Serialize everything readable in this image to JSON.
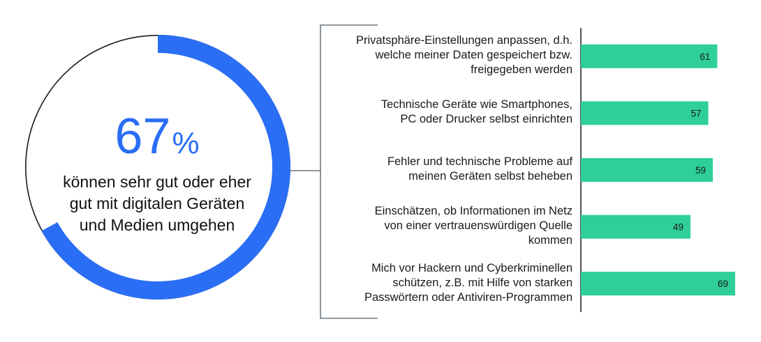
{
  "headline": {
    "value": "67",
    "unit": "%",
    "caption_lines": [
      "können sehr gut oder eher",
      "gut mit digitalen Geräten",
      "und Medien umgehen"
    ]
  },
  "colors": {
    "donut_fill": "#2a6ef5",
    "donut_track": "#1a1a1a",
    "bars": "#2ecf9a",
    "bracket": "#4a5a66"
  },
  "chart_data": [
    {
      "type": "pie",
      "values": [
        67,
        33
      ],
      "labels": [
        "67%",
        ""
      ]
    },
    {
      "type": "bar",
      "orientation": "horizontal",
      "categories": [
        [
          "Privatsphäre-Einstellungen anpassen, d.h.",
          "welche meiner Daten gespeichert bzw.",
          "freigegeben werden"
        ],
        [
          "Technische Geräte wie Smartphones,",
          "PC oder Drucker selbst einrichten"
        ],
        [
          "Fehler und technische Probleme auf",
          "meinen Geräten selbst beheben"
        ],
        [
          "Einschätzen, ob Informationen im Netz",
          "von einer vertrauenswürdigen Quelle",
          "kommen"
        ],
        [
          "Mich vor Hackern und Cyberkriminellen",
          "schützen, z.B. mit Hilfe von starken",
          "Passwörtern oder Antiviren-Programmen"
        ]
      ],
      "values": [
        61,
        57,
        59,
        49,
        69
      ],
      "xlim": [
        0,
        69
      ]
    }
  ]
}
